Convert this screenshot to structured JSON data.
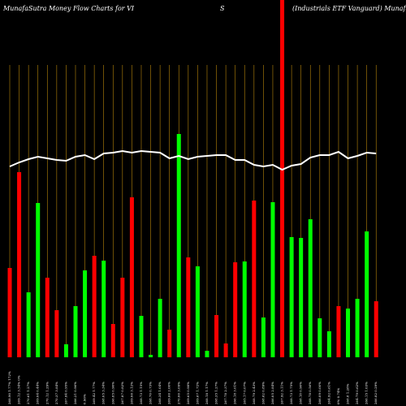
{
  "chart_data": {
    "type": "bar",
    "title_left": "MunafaSutra  Money Flow  Charts for VI",
    "title_mid": "S",
    "title_right": "(Industrials ETF Vanguard) MunafaSutra",
    "categories": [
      "268.90 1.77% 172%",
      "269.12 3.54% 0%",
      "270.61 1.27%",
      "269.04 0.44%",
      "270.12 1.29%",
      "270.37 3.84%",
      "267.84 0.95%",
      "266.21 0.96%",
      "0.96%",
      "269.42 1.77%",
      "268.05 3.34%",
      "266.85 0.90%",
      "267.87 0.82%",
      "269.06 3.12%",
      "268.73 1.15%",
      "268.70 0.73%",
      "268.34 1.04%",
      "269.66 2.00%",
      "270.00 3.09%",
      "269.65 0.98%",
      "269.67 1.72%",
      "268.18 1.17%",
      "268.35 1.27%",
      "267.78 2.37%",
      "266.18 3.01%",
      "265.17 0.07%",
      "268.79 2.43%",
      "268.62 0.89%",
      "266.05 2.84%",
      "267.92 3.11%",
      "268.73 1.75%",
      "268.18 0.90%",
      "268.78 0.56%",
      "266.09 0.00%",
      "264.92 0.61%",
      "0% 0.74%",
      "268.8 1.28%",
      "264.79 0.62%",
      "266.15 1.03%",
      "266.82 0.29%"
    ],
    "series": [
      {
        "name": "Money Flow",
        "values": [
          110,
          228,
          80,
          190,
          98,
          58,
          16,
          63,
          107,
          125,
          119,
          41,
          98,
          197,
          51,
          3,
          72,
          34,
          275,
          123,
          112,
          8,
          52,
          17,
          117,
          118,
          193,
          49,
          191,
          440,
          148,
          147,
          170,
          48,
          32,
          63,
          60,
          72,
          155,
          69
        ],
        "colors": [
          "red",
          "red",
          "lime",
          "lime",
          "red",
          "red",
          "lime",
          "lime",
          "lime",
          "red",
          "lime",
          "red",
          "red",
          "red",
          "lime",
          "lime",
          "lime",
          "red",
          "lime",
          "red",
          "lime",
          "lime",
          "red",
          "red",
          "red",
          "lime",
          "red",
          "lime",
          "lime",
          "red",
          "lime",
          "lime",
          "lime",
          "lime",
          "lime",
          "red",
          "lime",
          "lime",
          "lime",
          "red"
        ]
      },
      {
        "name": "Price",
        "type": "line",
        "color": "#ffffff",
        "values": [
          235,
          240,
          244,
          247,
          245,
          243,
          242,
          247,
          249,
          244,
          251,
          252,
          254,
          252,
          254,
          253,
          252,
          245,
          248,
          244,
          247,
          248,
          249,
          249,
          243,
          243,
          237,
          235,
          237,
          231,
          236,
          238,
          246,
          249,
          249,
          253,
          245,
          248,
          252,
          251
        ]
      }
    ],
    "grid_color": "#b8860b"
  }
}
